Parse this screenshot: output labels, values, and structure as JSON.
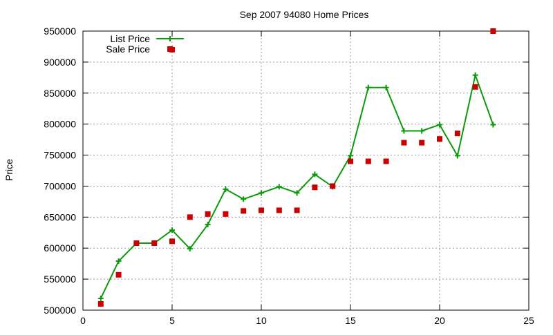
{
  "chart_data": {
    "type": "line",
    "title": "Sep 2007 94080 Home Prices",
    "xlabel": "",
    "ylabel": "Price",
    "xlim": [
      0,
      25
    ],
    "ylim": [
      500000,
      950000
    ],
    "xticks": [
      0,
      5,
      10,
      15,
      20,
      25
    ],
    "yticks": [
      500000,
      550000,
      600000,
      650000,
      700000,
      750000,
      800000,
      850000,
      900000,
      950000
    ],
    "grid": true,
    "legend_position": "top-left",
    "series": [
      {
        "name": "List Price",
        "style": "line-with-plus-markers",
        "color": "#0a9a0a",
        "x": [
          1,
          2,
          3,
          4,
          5,
          6,
          7,
          8,
          9,
          10,
          11,
          12,
          13,
          14,
          15,
          16,
          17,
          18,
          19,
          20,
          21,
          22,
          23
        ],
        "y": [
          519000,
          579000,
          608000,
          608000,
          629000,
          599000,
          638000,
          695000,
          679000,
          689000,
          699000,
          689000,
          719000,
          699000,
          749000,
          859000,
          859000,
          789000,
          789000,
          799000,
          749000,
          879000,
          799000
        ]
      },
      {
        "name": "Sale Price",
        "style": "square-markers",
        "color": "#cc0000",
        "x": [
          1,
          2,
          3,
          4,
          5,
          5,
          6,
          7,
          8,
          9,
          10,
          11,
          12,
          13,
          14,
          15,
          16,
          17,
          18,
          19,
          20,
          21,
          22,
          23
        ],
        "y": [
          510000,
          557000,
          608000,
          608000,
          611000,
          920000,
          650000,
          655000,
          655000,
          660000,
          661000,
          661000,
          661000,
          698000,
          700000,
          740000,
          740000,
          740000,
          770000,
          770000,
          776000,
          785000,
          860000,
          950000
        ]
      }
    ]
  }
}
